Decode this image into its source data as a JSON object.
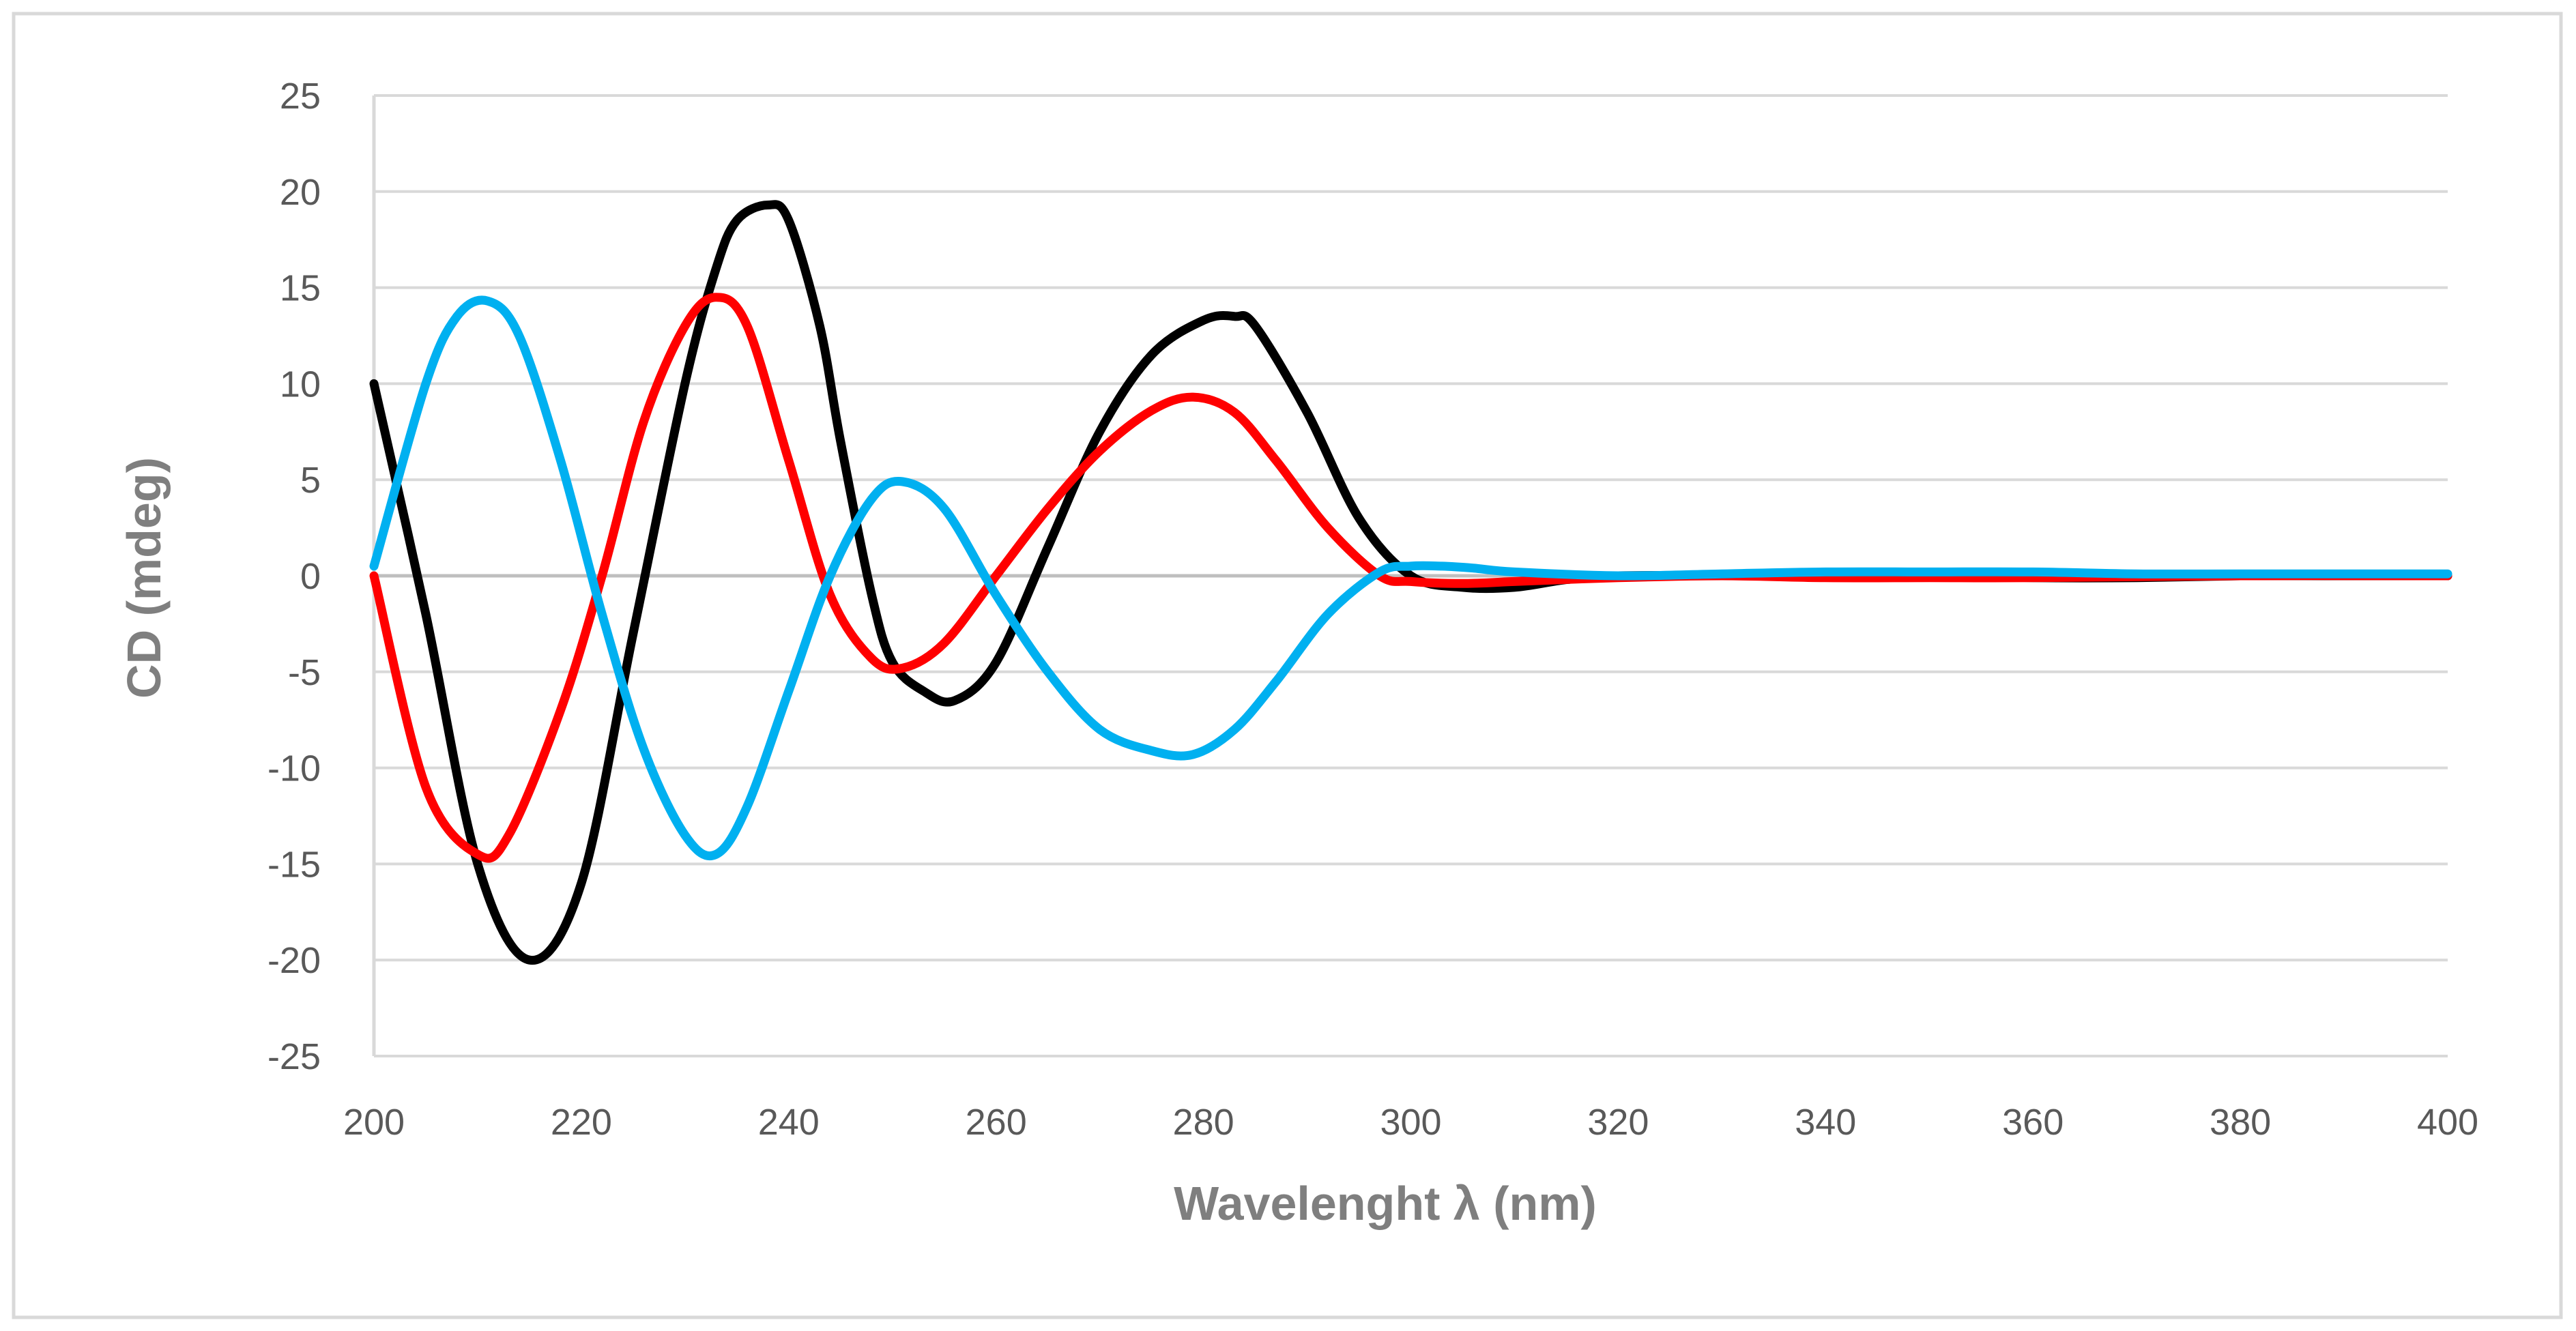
{
  "chart_data": {
    "type": "line",
    "title": "",
    "xlabel": "Wavelenght  λ (nm)",
    "ylabel": "CD (mdeg)",
    "xlim": [
      200,
      400
    ],
    "ylim": [
      -25,
      25
    ],
    "x_ticks": [
      200,
      220,
      240,
      260,
      280,
      300,
      320,
      340,
      360,
      380,
      400
    ],
    "y_ticks": [
      25,
      20,
      15,
      10,
      5,
      0,
      -5,
      -10,
      -15,
      -20,
      -25
    ],
    "grid": "horizontal",
    "legend": "none",
    "series": [
      {
        "name": "black",
        "color": "#000000",
        "x": [
          200,
          205,
          210,
          215,
          220,
          225,
          230,
          233,
          235,
          238,
          240,
          243,
          245,
          248,
          250,
          253,
          256,
          260,
          265,
          270,
          275,
          280,
          283,
          285,
          290,
          295,
          300,
          305,
          310,
          315,
          320,
          330,
          340,
          350,
          360,
          370,
          380,
          390,
          400
        ],
        "y": [
          10,
          -2,
          -15,
          -20,
          -16,
          -3,
          10,
          16,
          18.5,
          19.3,
          18.5,
          13,
          7,
          -1,
          -4.5,
          -6,
          -6.5,
          -4.5,
          1.5,
          7.5,
          11.5,
          13.3,
          13.5,
          13,
          8.5,
          3,
          0,
          -0.6,
          -0.6,
          -0.2,
          0,
          0,
          0,
          0,
          -0.1,
          -0.1,
          0,
          0,
          0
        ]
      },
      {
        "name": "red",
        "color": "#ff0000",
        "x": [
          200,
          205,
          210,
          213,
          218,
          222,
          226,
          230,
          233,
          236,
          240,
          244,
          248,
          251,
          255,
          260,
          265,
          270,
          275,
          279,
          283,
          287,
          292,
          297,
          300,
          305,
          310,
          320,
          330,
          340,
          350,
          360,
          380,
          400
        ],
        "y": [
          0,
          -11,
          -14.5,
          -13.5,
          -7,
          0,
          8,
          13,
          14.5,
          13,
          6,
          -1,
          -4.3,
          -4.8,
          -3.5,
          0,
          3.5,
          6.5,
          8.6,
          9.3,
          8.5,
          6,
          2.5,
          0,
          -0.3,
          -0.4,
          -0.3,
          -0.1,
          0,
          -0.1,
          -0.1,
          -0.1,
          0,
          0
        ]
      },
      {
        "name": "blue",
        "color": "#00b0f0",
        "x": [
          200,
          205,
          208,
          211,
          214,
          218,
          222,
          226,
          230,
          233,
          236,
          240,
          244,
          248,
          251,
          255,
          260,
          265,
          270,
          275,
          279,
          283,
          287,
          292,
          297,
          300,
          303,
          306,
          310,
          320,
          330,
          340,
          350,
          360,
          370,
          380,
          400
        ],
        "y": [
          0.5,
          10,
          13.5,
          14.3,
          12.5,
          6,
          -2,
          -9,
          -13.5,
          -14.5,
          -12,
          -6,
          0,
          4,
          4.9,
          3.5,
          -1,
          -5,
          -8,
          -9.1,
          -9.3,
          -8,
          -5.5,
          -2,
          0.2,
          0.5,
          0.5,
          0.4,
          0.2,
          0,
          0.1,
          0.2,
          0.2,
          0.2,
          0.1,
          0.1,
          0.1
        ]
      }
    ]
  }
}
